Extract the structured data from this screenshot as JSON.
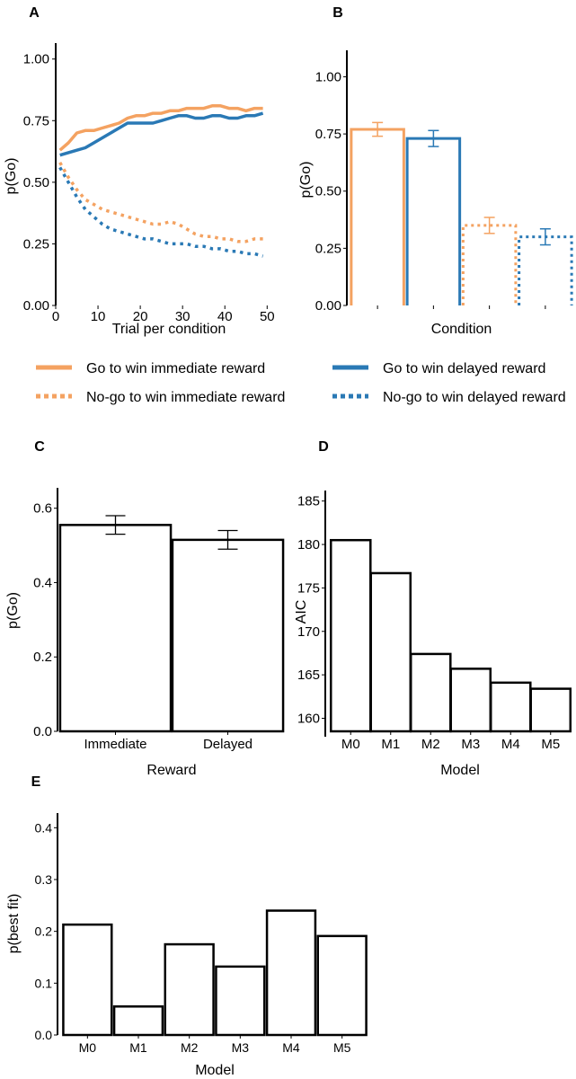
{
  "colors": {
    "orange": "#F4A261",
    "blue": "#2A79B5",
    "black": "#000000"
  },
  "chart_data": [
    {
      "panel": "A",
      "type": "line",
      "xlabel": "Trial per condition",
      "ylabel": "p(Go)",
      "xlim": [
        0,
        51
      ],
      "ylim": [
        0,
        1.05
      ],
      "x_ticks": [
        0,
        10,
        20,
        30,
        40,
        50
      ],
      "x_tick_labels": [
        "0",
        "10",
        "20",
        "30",
        "40",
        "50"
      ],
      "y_ticks": [
        0,
        0.25,
        0.5,
        0.75,
        1.0
      ],
      "y_tick_labels": [
        "0.00",
        "0.25",
        "0.50",
        "0.75",
        "1.00"
      ],
      "x": [
        1,
        3,
        5,
        7,
        9,
        11,
        13,
        15,
        17,
        19,
        21,
        23,
        25,
        27,
        29,
        31,
        33,
        35,
        37,
        39,
        41,
        43,
        45,
        47,
        49
      ],
      "series": [
        {
          "name": "Go to win immediate reward",
          "color": "orange",
          "style": "solid",
          "values": [
            0.63,
            0.66,
            0.7,
            0.71,
            0.71,
            0.72,
            0.73,
            0.74,
            0.76,
            0.77,
            0.77,
            0.78,
            0.78,
            0.79,
            0.79,
            0.8,
            0.8,
            0.8,
            0.81,
            0.81,
            0.8,
            0.8,
            0.79,
            0.8,
            0.8
          ]
        },
        {
          "name": "Go to win delayed reward",
          "color": "blue",
          "style": "solid",
          "values": [
            0.61,
            0.62,
            0.63,
            0.64,
            0.66,
            0.68,
            0.7,
            0.72,
            0.74,
            0.74,
            0.74,
            0.74,
            0.75,
            0.76,
            0.77,
            0.77,
            0.76,
            0.76,
            0.77,
            0.77,
            0.76,
            0.76,
            0.77,
            0.77,
            0.78
          ]
        },
        {
          "name": "No-go to win immediate reward",
          "color": "orange",
          "style": "dotted",
          "values": [
            0.58,
            0.52,
            0.47,
            0.43,
            0.41,
            0.39,
            0.38,
            0.37,
            0.36,
            0.35,
            0.34,
            0.33,
            0.33,
            0.34,
            0.33,
            0.31,
            0.29,
            0.28,
            0.28,
            0.27,
            0.27,
            0.26,
            0.26,
            0.27,
            0.27
          ]
        },
        {
          "name": "No-go to win delayed reward",
          "color": "blue",
          "style": "dotted",
          "values": [
            0.56,
            0.5,
            0.44,
            0.39,
            0.36,
            0.33,
            0.31,
            0.3,
            0.29,
            0.28,
            0.27,
            0.27,
            0.26,
            0.25,
            0.25,
            0.25,
            0.24,
            0.24,
            0.23,
            0.23,
            0.22,
            0.22,
            0.21,
            0.21,
            0.2
          ]
        }
      ]
    },
    {
      "panel": "B",
      "type": "bar",
      "xlabel": "Condition",
      "ylabel": "p(Go)",
      "ylim": [
        0,
        1.1
      ],
      "y_ticks": [
        0,
        0.25,
        0.5,
        0.75,
        1.0
      ],
      "y_tick_labels": [
        "0.00",
        "0.25",
        "0.50",
        "0.75",
        "1.00"
      ],
      "categories": [
        "Go to win immediate reward",
        "Go to win delayed reward",
        "No-go to win immediate reward",
        "No-go to win delayed reward"
      ],
      "values": [
        0.77,
        0.73,
        0.35,
        0.3
      ],
      "errors": [
        0.03,
        0.035,
        0.035,
        0.035
      ],
      "bar_colors": [
        "orange",
        "blue",
        "orange",
        "blue"
      ],
      "bar_styles": [
        "solid",
        "solid",
        "dotted",
        "dotted"
      ]
    },
    {
      "panel": "C",
      "type": "bar",
      "xlabel": "Reward",
      "ylabel": "p(Go)",
      "ylim": [
        0,
        0.65
      ],
      "y_ticks": [
        0,
        0.2,
        0.4,
        0.6
      ],
      "y_tick_labels": [
        "0.0",
        "0.2",
        "0.4",
        "0.6"
      ],
      "categories": [
        "Immediate",
        "Delayed"
      ],
      "values": [
        0.555,
        0.515
      ],
      "errors": [
        0.025,
        0.025
      ]
    },
    {
      "panel": "D",
      "type": "bar",
      "xlabel": "Model",
      "ylabel": "AIC",
      "ylim": [
        158.5,
        186
      ],
      "y_ticks": [
        160,
        165,
        170,
        175,
        180,
        185
      ],
      "y_tick_labels": [
        "160",
        "165",
        "170",
        "175",
        "180",
        "185"
      ],
      "categories": [
        "M0",
        "M1",
        "M2",
        "M3",
        "M4",
        "M5"
      ],
      "values": [
        180.5,
        176.7,
        167.4,
        165.7,
        164.1,
        163.4
      ]
    },
    {
      "panel": "E",
      "type": "bar",
      "xlabel": "Model",
      "ylabel": "p(best fit)",
      "ylim": [
        0,
        0.43
      ],
      "y_ticks": [
        0,
        0.1,
        0.2,
        0.3,
        0.4
      ],
      "y_tick_labels": [
        "0.0",
        "0.1",
        "0.2",
        "0.3",
        "0.4"
      ],
      "categories": [
        "M0",
        "M1",
        "M2",
        "M3",
        "M4",
        "M5"
      ],
      "values": [
        0.213,
        0.055,
        0.175,
        0.132,
        0.24,
        0.191
      ]
    }
  ],
  "legend": [
    {
      "label": "Go to win immediate reward",
      "color": "orange",
      "style": "solid"
    },
    {
      "label": "Go to win delayed reward",
      "color": "blue",
      "style": "solid"
    },
    {
      "label": "No-go to win immediate reward",
      "color": "orange",
      "style": "dotted"
    },
    {
      "label": "No-go to win delayed reward",
      "color": "blue",
      "style": "dotted"
    }
  ]
}
